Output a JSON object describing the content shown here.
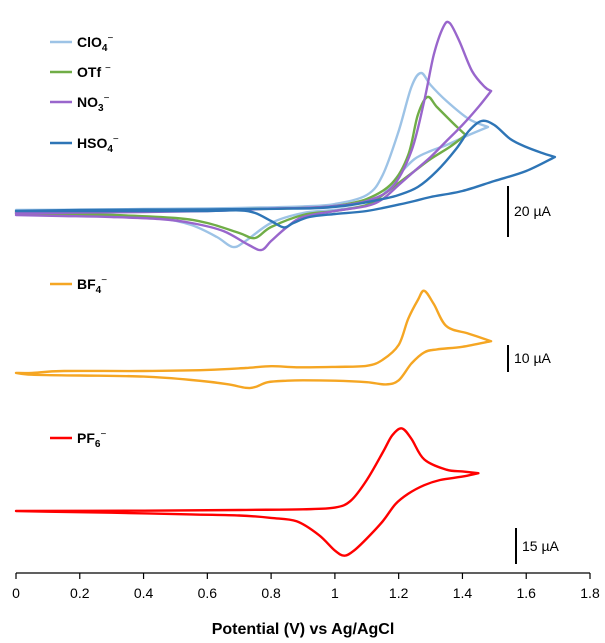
{
  "chart_data": {
    "type": "line",
    "title": "",
    "xlabel": "Potential (V) vs Ag/AgCl",
    "ylabel": "",
    "xlim": [
      0,
      1.8
    ],
    "xticks": [
      "0",
      "0.2",
      "0.4",
      "0.6",
      "0.8",
      "1",
      "1.2",
      "1.4",
      "1.6",
      "1.8"
    ],
    "grid": false,
    "panels": [
      {
        "scale_bar_label": "20 µA",
        "series": [
          {
            "name": "ClO4−",
            "label_main": "ClO",
            "label_sub": "4",
            "label_sup": "−",
            "color": "#9dc3e6",
            "forward": [
              [
                0,
                0.5
              ],
              [
                0.2,
                0.7
              ],
              [
                0.4,
                1
              ],
              [
                0.6,
                1.3
              ],
              [
                0.75,
                1.7
              ],
              [
                0.9,
                2.3
              ],
              [
                1.0,
                3.5
              ],
              [
                1.1,
                8
              ],
              [
                1.15,
                18
              ],
              [
                1.2,
                40
              ],
              [
                1.24,
                62
              ],
              [
                1.27,
                69
              ],
              [
                1.3,
                63
              ],
              [
                1.35,
                55
              ],
              [
                1.42,
                46
              ],
              [
                1.48,
                42
              ]
            ],
            "reverse": [
              [
                1.48,
                42
              ],
              [
                1.42,
                38
              ],
              [
                1.35,
                33
              ],
              [
                1.3,
                30
              ],
              [
                1.25,
                26
              ],
              [
                1.2,
                18
              ],
              [
                1.15,
                8
              ],
              [
                1.1,
                3
              ],
              [
                1.0,
                0.5
              ],
              [
                0.9,
                -1
              ],
              [
                0.8,
                -6
              ],
              [
                0.72,
                -15
              ],
              [
                0.68,
                -18
              ],
              [
                0.63,
                -13
              ],
              [
                0.55,
                -7
              ],
              [
                0.45,
                -3.5
              ],
              [
                0.3,
                -2
              ],
              [
                0.15,
                -1.5
              ],
              [
                0,
                -1
              ]
            ]
          },
          {
            "name": "OTf −",
            "label_main": "OTf ",
            "label_sub": "",
            "label_sup": "−",
            "color": "#70ad47",
            "forward": [
              [
                0,
                -0.5
              ],
              [
                0.2,
                -0.2
              ],
              [
                0.4,
                0.2
              ],
              [
                0.6,
                0.6
              ],
              [
                0.75,
                1
              ],
              [
                0.9,
                1.5
              ],
              [
                1.0,
                2.5
              ],
              [
                1.1,
                6
              ],
              [
                1.18,
                14
              ],
              [
                1.23,
                28
              ],
              [
                1.26,
                48
              ],
              [
                1.29,
                57
              ],
              [
                1.32,
                52
              ],
              [
                1.37,
                44
              ],
              [
                1.41,
                38
              ]
            ],
            "reverse": [
              [
                1.41,
                38
              ],
              [
                1.36,
                32
              ],
              [
                1.3,
                26
              ],
              [
                1.25,
                20
              ],
              [
                1.2,
                14
              ],
              [
                1.15,
                8
              ],
              [
                1.1,
                3
              ],
              [
                1.0,
                0
              ],
              [
                0.9,
                -2
              ],
              [
                0.8,
                -8
              ],
              [
                0.75,
                -13.5
              ],
              [
                0.7,
                -11
              ],
              [
                0.6,
                -6
              ],
              [
                0.5,
                -3.5
              ],
              [
                0.3,
                -2
              ],
              [
                0.15,
                -1.6
              ],
              [
                0,
                -1.2
              ]
            ]
          },
          {
            "name": "NO3−",
            "label_main": "NO",
            "label_sub": "3",
            "label_sup": "−",
            "color": "#9966cc",
            "forward": [
              [
                0,
                -1
              ],
              [
                0.2,
                -0.8
              ],
              [
                0.4,
                -0.5
              ],
              [
                0.6,
                0
              ],
              [
                0.7,
                0.5
              ],
              [
                0.8,
                1.2
              ],
              [
                0.9,
                1.5
              ],
              [
                1.0,
                2.5
              ],
              [
                1.1,
                5
              ],
              [
                1.18,
                12
              ],
              [
                1.24,
                30
              ],
              [
                1.28,
                55
              ],
              [
                1.31,
                78
              ],
              [
                1.34,
                92
              ],
              [
                1.36,
                94
              ],
              [
                1.39,
                85
              ],
              [
                1.43,
                70
              ],
              [
                1.47,
                62
              ],
              [
                1.49,
                60
              ]
            ],
            "reverse": [
              [
                1.49,
                60
              ],
              [
                1.45,
                52
              ],
              [
                1.4,
                43
              ],
              [
                1.35,
                35
              ],
              [
                1.3,
                27
              ],
              [
                1.25,
                20
              ],
              [
                1.2,
                13
              ],
              [
                1.15,
                6
              ],
              [
                1.1,
                2.5
              ],
              [
                1.0,
                0
              ],
              [
                0.9,
                -3
              ],
              [
                0.85,
                -8
              ],
              [
                0.8,
                -15
              ],
              [
                0.77,
                -19.5
              ],
              [
                0.73,
                -17
              ],
              [
                0.65,
                -10
              ],
              [
                0.55,
                -6
              ],
              [
                0.45,
                -4
              ],
              [
                0.3,
                -3
              ],
              [
                0.15,
                -2.5
              ],
              [
                0,
                -2
              ]
            ]
          },
          {
            "name": "HSO4−",
            "label_main": "HSO",
            "label_sub": "4",
            "label_sup": "−",
            "color": "#2e75b6",
            "forward": [
              [
                0,
                0
              ],
              [
                0.2,
                0.5
              ],
              [
                0.4,
                0.7
              ],
              [
                0.6,
                0.8
              ],
              [
                0.75,
                1
              ],
              [
                0.85,
                1.2
              ],
              [
                0.95,
                1.5
              ],
              [
                1.05,
                3
              ],
              [
                1.15,
                6
              ],
              [
                1.2,
                8
              ],
              [
                1.26,
                12
              ],
              [
                1.32,
                20
              ],
              [
                1.38,
                31
              ],
              [
                1.42,
                40
              ],
              [
                1.46,
                45
              ],
              [
                1.5,
                43
              ],
              [
                1.55,
                36
              ],
              [
                1.6,
                32
              ],
              [
                1.65,
                29
              ],
              [
                1.69,
                27
              ]
            ],
            "reverse": [
              [
                1.69,
                27
              ],
              [
                1.6,
                20
              ],
              [
                1.5,
                15
              ],
              [
                1.4,
                10
              ],
              [
                1.3,
                7
              ],
              [
                1.25,
                5
              ],
              [
                1.2,
                3.2
              ],
              [
                1.1,
                0
              ],
              [
                1.0,
                -1.5
              ],
              [
                0.92,
                -3
              ],
              [
                0.87,
                -6
              ],
              [
                0.84,
                -8.2
              ],
              [
                0.8,
                -5
              ],
              [
                0.75,
                -1
              ],
              [
                0.7,
                0.3
              ],
              [
                0.6,
                0
              ],
              [
                0.4,
                0
              ],
              [
                0.2,
                0
              ],
              [
                0,
                0
              ]
            ]
          }
        ]
      },
      {
        "scale_bar_label": "10 µA",
        "series": [
          {
            "name": "BF4−",
            "label_main": "BF",
            "label_sub": "4",
            "label_sup": "−",
            "color": "#f5a623",
            "forward": [
              [
                0,
                -0.5
              ],
              [
                0.05,
                -0.5
              ],
              [
                0.15,
                0
              ],
              [
                0.4,
                0
              ],
              [
                0.6,
                0.3
              ],
              [
                0.72,
                0.8
              ],
              [
                0.8,
                1.3
              ],
              [
                0.88,
                1
              ],
              [
                1.0,
                1.1
              ],
              [
                1.1,
                1.4
              ],
              [
                1.15,
                3
              ],
              [
                1.2,
                7
              ],
              [
                1.23,
                14
              ],
              [
                1.26,
                19
              ],
              [
                1.28,
                21.5
              ],
              [
                1.31,
                18
              ],
              [
                1.35,
                12
              ],
              [
                1.42,
                10
              ],
              [
                1.49,
                8
              ]
            ],
            "reverse": [
              [
                1.49,
                8
              ],
              [
                1.4,
                6.5
              ],
              [
                1.32,
                5.8
              ],
              [
                1.28,
                5
              ],
              [
                1.24,
                2
              ],
              [
                1.2,
                -2.5
              ],
              [
                1.16,
                -3.6
              ],
              [
                1.1,
                -3
              ],
              [
                1.0,
                -2.6
              ],
              [
                0.9,
                -2.5
              ],
              [
                0.85,
                -2.6
              ],
              [
                0.79,
                -3
              ],
              [
                0.75,
                -4.3
              ],
              [
                0.72,
                -4.5
              ],
              [
                0.66,
                -3.5
              ],
              [
                0.55,
                -2.4
              ],
              [
                0.4,
                -1.5
              ],
              [
                0.2,
                -1.2
              ],
              [
                0.05,
                -1
              ],
              [
                0,
                -0.5
              ]
            ]
          }
        ]
      },
      {
        "scale_bar_label": "15 µA",
        "series": [
          {
            "name": "PF6−",
            "label_main": "PF",
            "label_sub": "6",
            "label_sup": "−",
            "color": "#ff0000",
            "forward": [
              [
                0,
                0
              ],
              [
                0.4,
                0.1
              ],
              [
                0.7,
                0.3
              ],
              [
                0.9,
                0.5
              ],
              [
                1.0,
                1
              ],
              [
                1.05,
                3
              ],
              [
                1.1,
                9
              ],
              [
                1.15,
                17
              ],
              [
                1.18,
                22
              ],
              [
                1.21,
                24
              ],
              [
                1.24,
                21
              ],
              [
                1.28,
                15
              ],
              [
                1.35,
                12
              ],
              [
                1.4,
                11.5
              ],
              [
                1.45,
                11
              ]
            ],
            "reverse": [
              [
                1.45,
                11
              ],
              [
                1.4,
                10
              ],
              [
                1.33,
                9
              ],
              [
                1.28,
                7.5
              ],
              [
                1.23,
                5
              ],
              [
                1.19,
                2
              ],
              [
                1.15,
                -3
              ],
              [
                1.1,
                -8
              ],
              [
                1.06,
                -11.5
              ],
              [
                1.03,
                -13
              ],
              [
                1.0,
                -11.5
              ],
              [
                0.95,
                -7
              ],
              [
                0.88,
                -3
              ],
              [
                0.8,
                -2
              ],
              [
                0.7,
                -1.3
              ],
              [
                0.55,
                -1
              ],
              [
                0.3,
                -0.5
              ],
              [
                0.1,
                -0.2
              ],
              [
                0,
                0
              ]
            ]
          }
        ]
      }
    ]
  }
}
